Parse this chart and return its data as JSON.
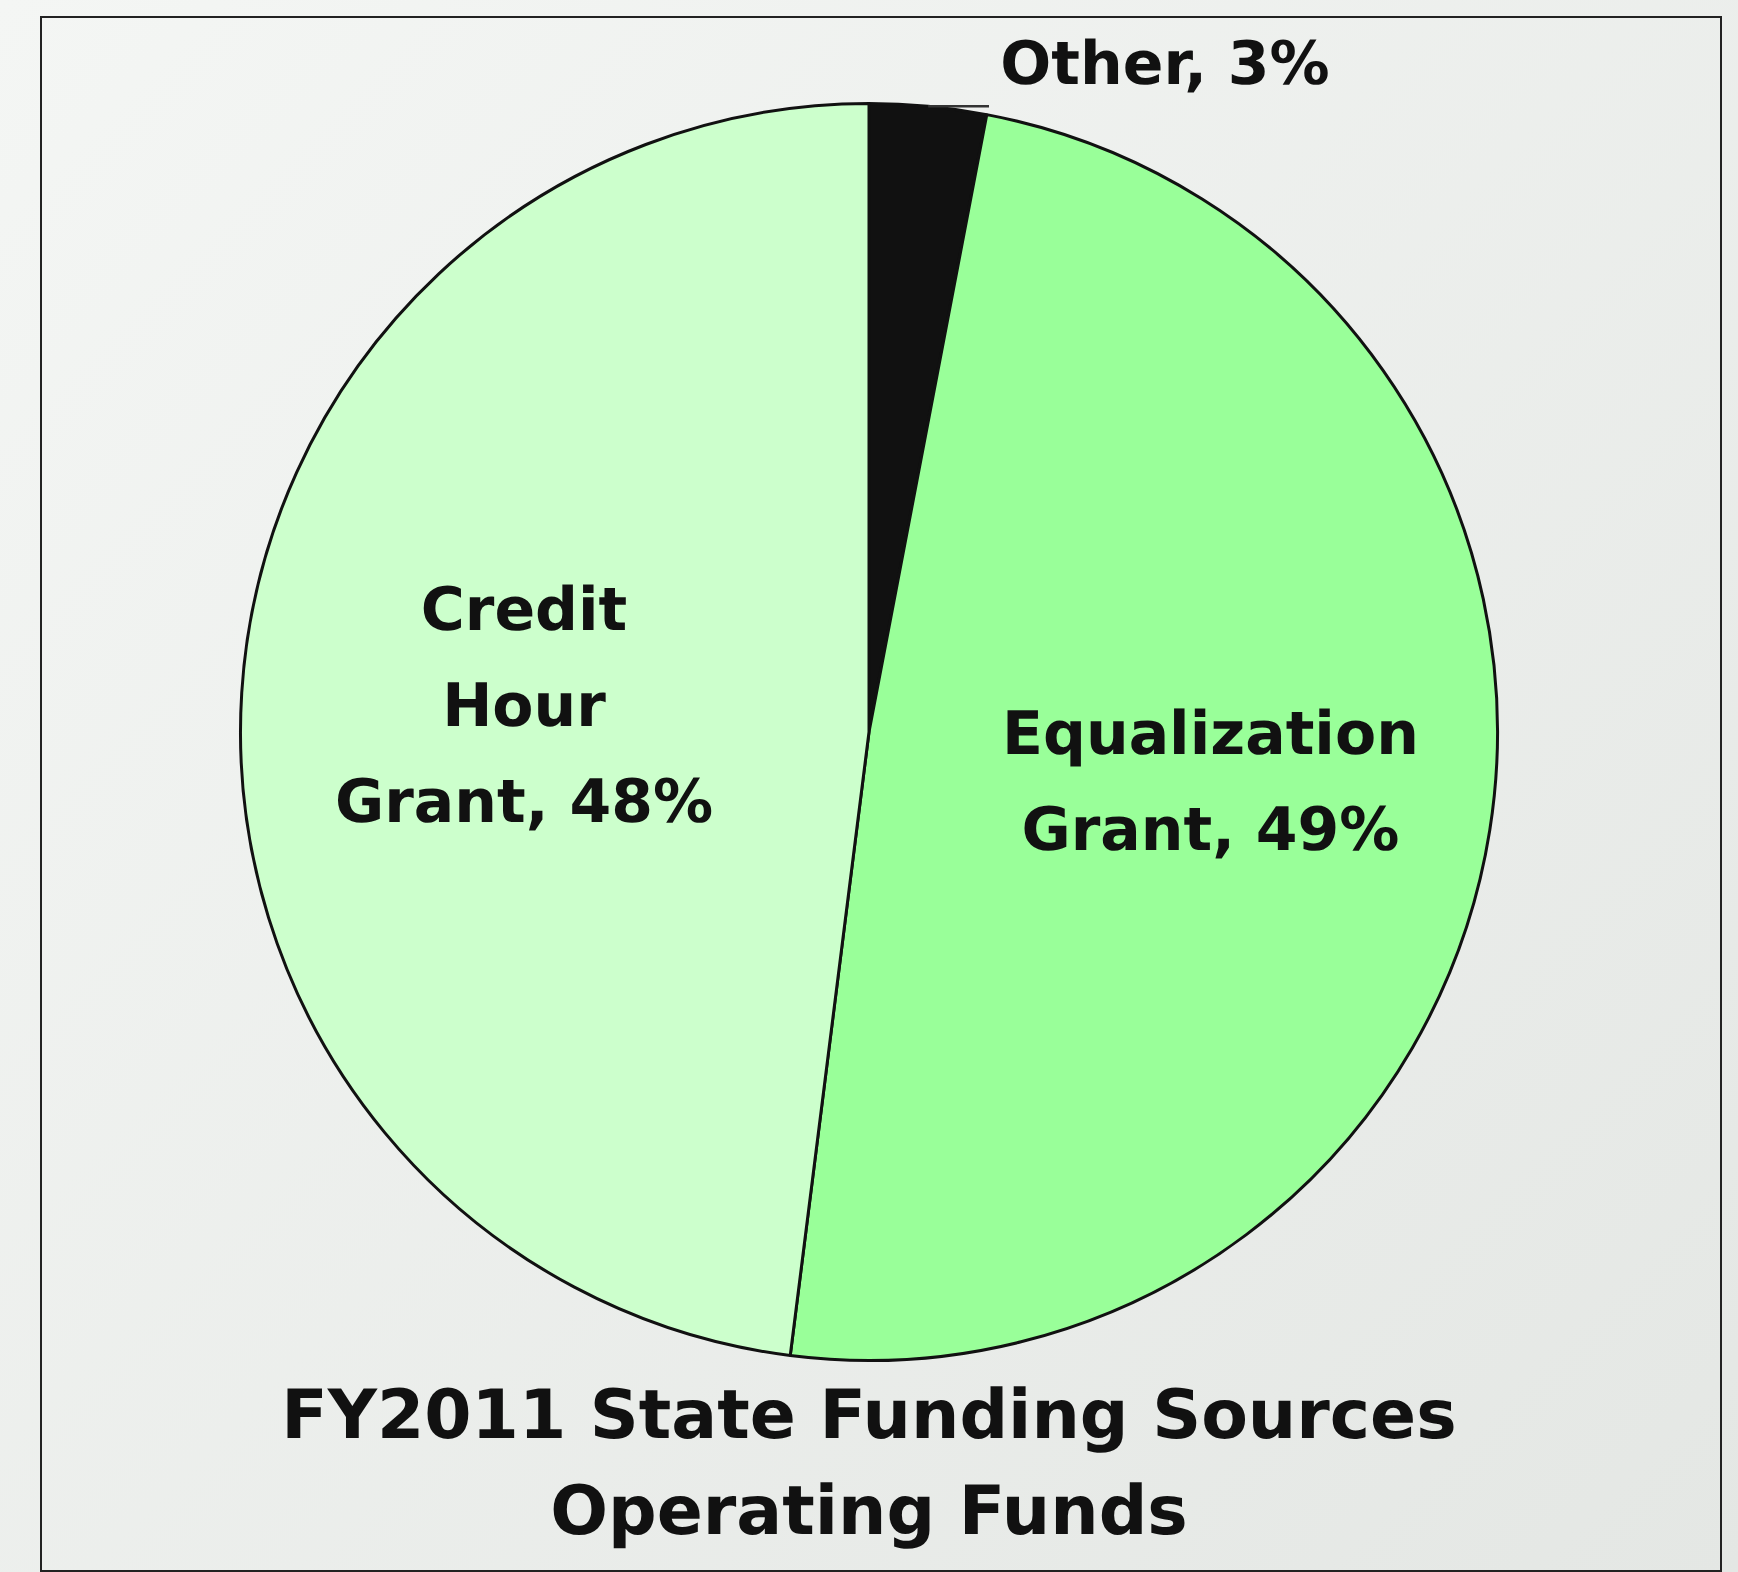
{
  "chart_data": {
    "type": "pie",
    "title": "FY2011 State Funding Sources Operating Funds",
    "categories": [
      "Other",
      "Equalization Grant",
      "Credit Hour Grant"
    ],
    "values": [
      3,
      49,
      48
    ],
    "colors": [
      "#111111",
      "#99ff99",
      "#ccffcc"
    ],
    "value_labels": [
      "3%",
      "49%",
      "48%"
    ]
  }
}
